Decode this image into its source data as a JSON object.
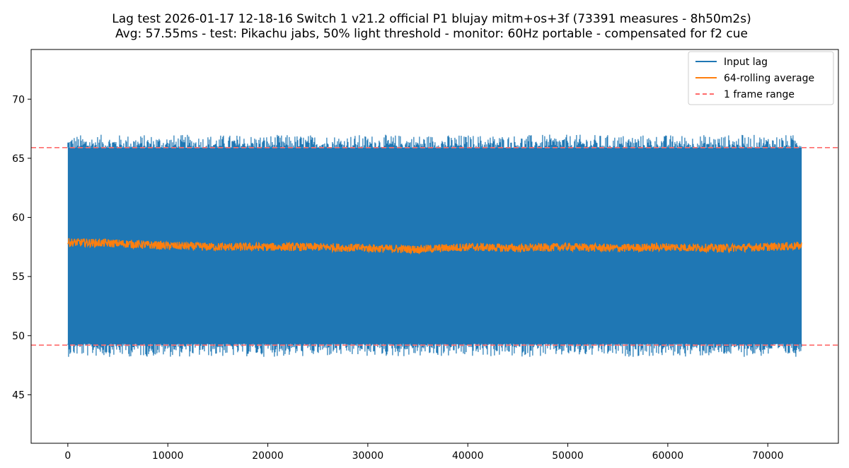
{
  "chart_data": {
    "type": "line",
    "title": "Lag test 2026-01-17 12-18-16 Switch 1 v21.2 official P1 blujay mitm+os+3f (73391 measures - 8h50m2s)",
    "subtitle": "Avg: 57.55ms - test: Pikachu jabs, 50% light threshold - monitor: 60Hz portable - compensated for f2 cue",
    "xlabel": "",
    "ylabel": "",
    "xlim": [
      -3670,
      77060
    ],
    "ylim": [
      40.9,
      74.2
    ],
    "x_ticks": [
      0,
      10000,
      20000,
      30000,
      40000,
      50000,
      60000,
      70000
    ],
    "y_ticks": [
      45,
      50,
      55,
      60,
      65,
      70
    ],
    "x_ticklabels": [
      "0",
      "10000",
      "20000",
      "30000",
      "40000",
      "50000",
      "60000",
      "70000"
    ],
    "y_ticklabels": [
      "45",
      "50",
      "55",
      "60",
      "65",
      "70"
    ],
    "grid": false,
    "legend_position": "top-right",
    "series": [
      {
        "name": "Input lag",
        "color": "#1f77b4",
        "style": "solid",
        "n_points": 73391,
        "x_range": [
          0,
          73391
        ],
        "band_core": [
          49.3,
          65.9
        ],
        "extremes": [
          48.2,
          67.0
        ],
        "note_values": "dense noisy signal filling approx 49.3-65.9 ms"
      },
      {
        "name": "64-rolling average",
        "color": "#ff7f0e",
        "style": "solid",
        "x_range": [
          0,
          73391
        ],
        "profile": [
          [
            0,
            57.9
          ],
          [
            5000,
            57.8
          ],
          [
            10000,
            57.6
          ],
          [
            15000,
            57.5
          ],
          [
            20000,
            57.5
          ],
          [
            25000,
            57.5
          ],
          [
            30000,
            57.4
          ],
          [
            35000,
            57.3
          ],
          [
            40000,
            57.5
          ],
          [
            45000,
            57.4
          ],
          [
            50000,
            57.5
          ],
          [
            55000,
            57.4
          ],
          [
            60000,
            57.5
          ],
          [
            65000,
            57.4
          ],
          [
            70000,
            57.5
          ],
          [
            73391,
            57.6
          ]
        ],
        "noise_amplitude": 0.35
      },
      {
        "name": "1 frame range",
        "color": "#ff6b6b",
        "style": "dashed",
        "hlines": [
          49.2,
          65.9
        ]
      }
    ]
  }
}
